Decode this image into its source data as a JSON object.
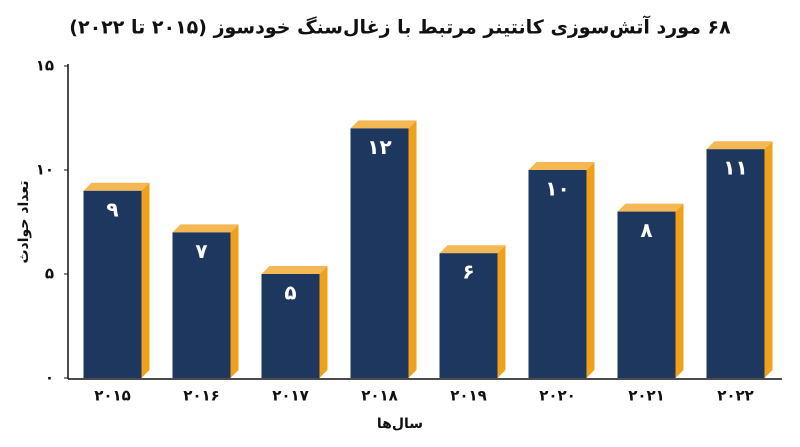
{
  "chart_data": {
    "type": "bar",
    "title": "۶۸ مورد آتش‌سوزی کانتینر مرتبط با زغال‌سنگ خودسوز (۲۰۱۵ تا ۲۰۲۲)",
    "x_label": "سال‌ها",
    "y_label": "تعداد حوادث",
    "categories": [
      "۲۰۱۵",
      "۲۰۱۶",
      "۲۰۱۷",
      "۲۰۱۸",
      "۲۰۱۹",
      "۲۰۲۰",
      "۲۰۲۱",
      "۲۰۲۲"
    ],
    "values": [
      9,
      7,
      5,
      12,
      6,
      10,
      8,
      11
    ],
    "value_labels": [
      "۹",
      "۷",
      "۵",
      "۱۲",
      "۶",
      "۱۰",
      "۸",
      "۱۱"
    ],
    "color": "#1d375f",
    "side_color": "#f0a11c",
    "ylim": [
      0,
      15
    ],
    "yticks": [
      {
        "value": 0,
        "label": "۰"
      },
      {
        "value": 5,
        "label": "۵"
      },
      {
        "value": 10,
        "label": "۱۰"
      },
      {
        "value": 15,
        "label": "۱۵"
      }
    ],
    "grid": false
  }
}
